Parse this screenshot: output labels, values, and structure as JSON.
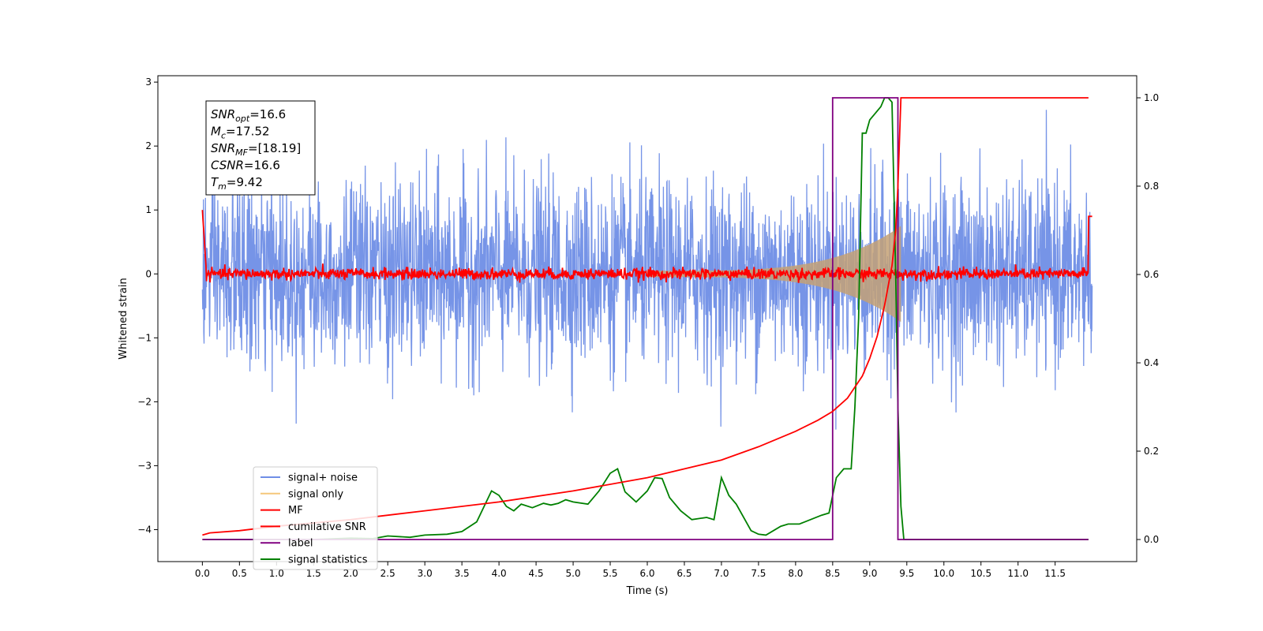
{
  "chart_data": {
    "type": "line",
    "xlabel": "Time (s)",
    "ylabel": "Whitened strain",
    "xlim": [
      -0.6,
      12.6
    ],
    "ylim": [
      -4.5,
      3.1
    ],
    "y2lim": [
      -0.05,
      1.05
    ],
    "xticks": [
      "0.0",
      "0.5",
      "1.0",
      "1.5",
      "2.0",
      "2.5",
      "3.0",
      "3.5",
      "4.0",
      "4.5",
      "5.0",
      "5.5",
      "6.0",
      "6.5",
      "7.0",
      "7.5",
      "8.0",
      "8.5",
      "9.0",
      "9.5",
      "10.0",
      "10.5",
      "11.0",
      "11.5"
    ],
    "yticks": [
      "3",
      "2",
      "1",
      "0",
      "−1",
      "−2",
      "−3",
      "−4"
    ],
    "y2ticks": [
      "1.0",
      "0.8",
      "0.6",
      "0.4",
      "0.2",
      "0.0"
    ],
    "annotation": {
      "lines": [
        {
          "base": "SNR",
          "sub": "opt",
          "rest": "=16.6"
        },
        {
          "base": "M",
          "sub": "c",
          "rest": "=17.52"
        },
        {
          "base": "SNR",
          "sub": "MF",
          "rest": "=[18.19]"
        },
        {
          "base": "CSNR",
          "sub": "",
          "rest": "=16.6"
        },
        {
          "base": "T",
          "sub": "m",
          "rest": "=9.42"
        }
      ]
    },
    "legend": {
      "position": "lower-left",
      "entries": [
        "signal+ noise",
        "signal only",
        "MF",
        "cumilative SNR",
        "label",
        "signal statistics"
      ]
    },
    "colors": {
      "signal_noise": "#6f8ee6",
      "signal_only": "#f5c77a",
      "overlap": "#c4a176",
      "mf": "#ff0000",
      "cumulative_snr": "#ff0000",
      "label": "#800080",
      "signal_statistics": "#008000"
    },
    "series": [
      {
        "name": "signal statistics",
        "axis": "right",
        "x": [
          0.0,
          0.5,
          1.0,
          1.5,
          2.0,
          2.3,
          2.5,
          2.8,
          3.0,
          3.3,
          3.5,
          3.7,
          3.9,
          4.0,
          4.1,
          4.2,
          4.3,
          4.45,
          4.6,
          4.7,
          4.8,
          4.9,
          5.0,
          5.2,
          5.35,
          5.5,
          5.6,
          5.7,
          5.85,
          6.0,
          6.1,
          6.2,
          6.3,
          6.45,
          6.6,
          6.8,
          6.9,
          7.0,
          7.1,
          7.2,
          7.4,
          7.5,
          7.6,
          7.8,
          7.9,
          8.05,
          8.2,
          8.35,
          8.45,
          8.55,
          8.65,
          8.75,
          8.8,
          8.85,
          8.9,
          8.95,
          9.0,
          9.05,
          9.1,
          9.15,
          9.2,
          9.25,
          9.3,
          9.35,
          9.38,
          9.42,
          9.46,
          9.5,
          9.6,
          10.0,
          11.0,
          11.95
        ],
        "y": [
          0.0,
          0.0,
          0.0,
          0.0,
          0.003,
          0.002,
          0.008,
          0.005,
          0.01,
          0.012,
          0.018,
          0.04,
          0.11,
          0.1,
          0.075,
          0.065,
          0.08,
          0.072,
          0.082,
          0.078,
          0.082,
          0.09,
          0.085,
          0.08,
          0.11,
          0.15,
          0.16,
          0.108,
          0.085,
          0.11,
          0.14,
          0.138,
          0.095,
          0.065,
          0.045,
          0.05,
          0.045,
          0.14,
          0.1,
          0.08,
          0.02,
          0.012,
          0.01,
          0.03,
          0.035,
          0.035,
          0.045,
          0.055,
          0.06,
          0.14,
          0.16,
          0.16,
          0.3,
          0.5,
          0.92,
          0.92,
          0.95,
          0.96,
          0.97,
          0.98,
          1.0,
          1.0,
          0.99,
          0.6,
          0.3,
          0.075,
          0.0,
          0.0,
          0.0,
          0.0,
          0.0,
          0.0
        ]
      },
      {
        "name": "label",
        "axis": "right",
        "x": [
          0.0,
          8.5,
          8.5,
          9.38,
          9.38,
          11.95
        ],
        "y": [
          0.0,
          0.0,
          1.0,
          1.0,
          0.0,
          0.0
        ]
      },
      {
        "name": "cumilative SNR",
        "axis": "right",
        "x": [
          0.0,
          0.1,
          0.5,
          1.0,
          2.0,
          3.0,
          4.0,
          5.0,
          6.0,
          7.0,
          7.5,
          8.0,
          8.3,
          8.5,
          8.7,
          8.9,
          9.0,
          9.1,
          9.2,
          9.3,
          9.35,
          9.38,
          9.4,
          9.42,
          9.45,
          10.0,
          11.0,
          11.95
        ],
        "y": [
          0.01,
          0.015,
          0.02,
          0.03,
          0.045,
          0.065,
          0.085,
          0.11,
          0.14,
          0.18,
          0.21,
          0.245,
          0.27,
          0.29,
          0.32,
          0.37,
          0.41,
          0.46,
          0.53,
          0.62,
          0.7,
          0.8,
          0.9,
          1.0,
          1.0,
          1.0,
          1.0,
          1.0
        ]
      }
    ]
  }
}
